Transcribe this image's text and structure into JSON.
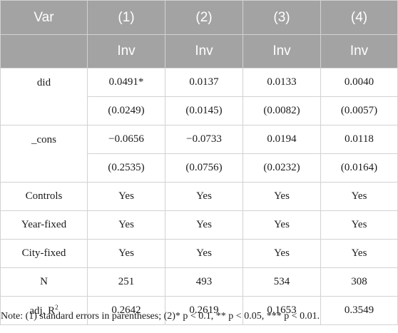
{
  "table": {
    "corner_label": "Var",
    "columns": [
      "(1)",
      "(2)",
      "(3)",
      "(4)"
    ],
    "dep_vars": [
      "Inv",
      "Inv",
      "Inv",
      "Inv"
    ],
    "did": {
      "label": "did",
      "coef": [
        "0.0491*",
        "0.0137",
        "0.0133",
        "0.0040"
      ],
      "se": [
        "(0.0249)",
        "(0.0145)",
        "(0.0082)",
        "(0.0057)"
      ]
    },
    "cons": {
      "label": "_cons",
      "coef": [
        "−0.0656",
        "−0.0733",
        "0.0194",
        "0.0118"
      ],
      "se": [
        "(0.2535)",
        "(0.0756)",
        "(0.0232)",
        "(0.0164)"
      ]
    },
    "rows": [
      {
        "label": "Controls",
        "values": [
          "Yes",
          "Yes",
          "Yes",
          "Yes"
        ]
      },
      {
        "label": "Year-fixed",
        "values": [
          "Yes",
          "Yes",
          "Yes",
          "Yes"
        ]
      },
      {
        "label": "City-fixed",
        "values": [
          "Yes",
          "Yes",
          "Yes",
          "Yes"
        ]
      },
      {
        "label": "N",
        "values": [
          "251",
          "493",
          "534",
          "308"
        ]
      }
    ],
    "adj_r2": {
      "label_prefix": "adj. R",
      "label_sup": "2",
      "values": [
        "0.2642",
        "0.2619",
        "0.1653",
        "0.3549"
      ]
    }
  },
  "note": "Note: (1) standard errors in parentheses; (2)* p < 0.1, ** p < 0.05, *** p < 0.01."
}
